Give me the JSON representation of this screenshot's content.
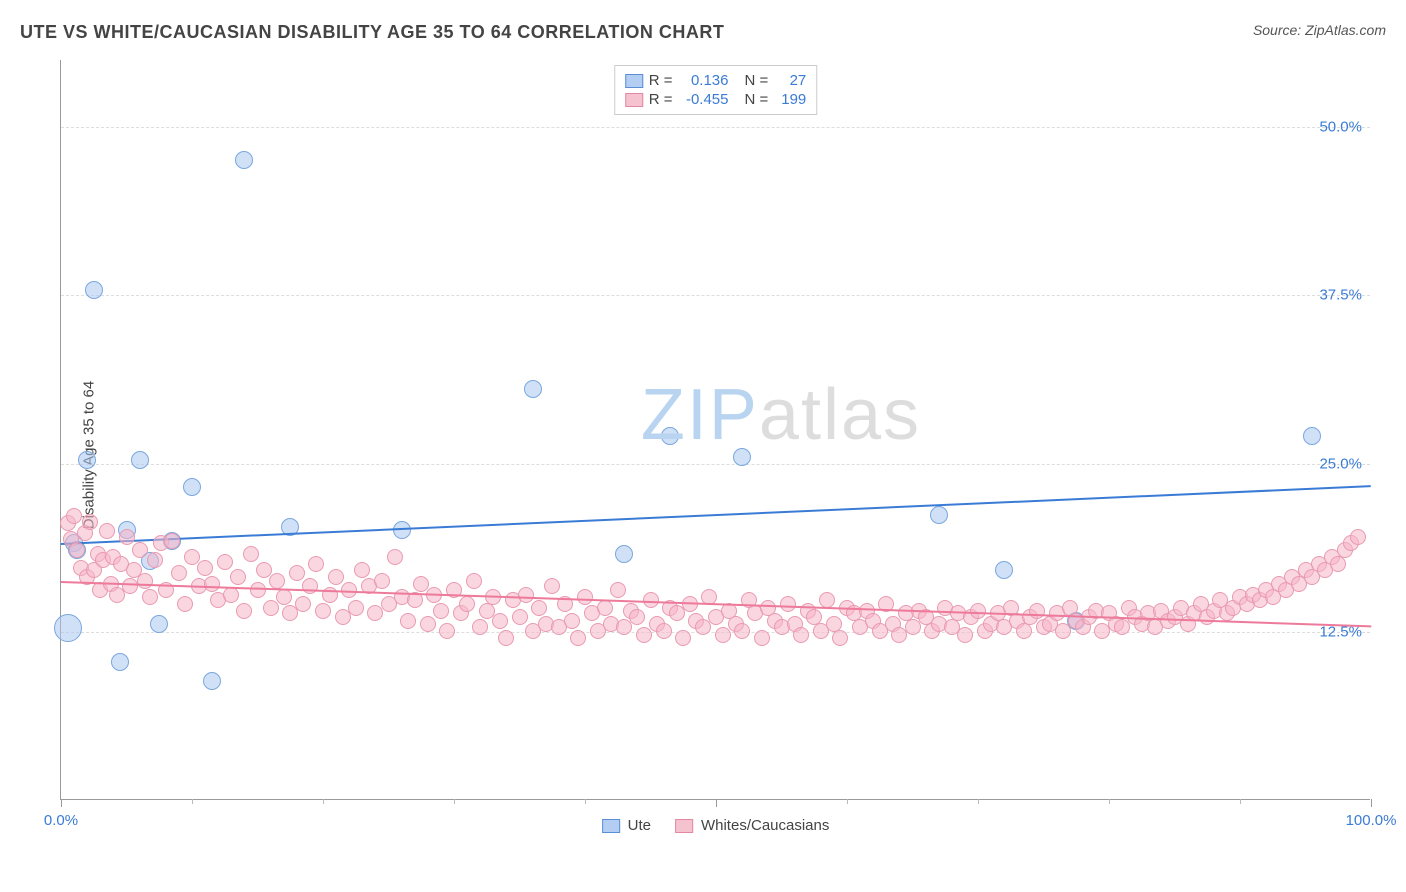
{
  "header": {
    "title": "UTE VS WHITE/CAUCASIAN DISABILITY AGE 35 TO 64 CORRELATION CHART",
    "source": "Source: ZipAtlas.com"
  },
  "chart": {
    "type": "scatter",
    "ylabel": "Disability Age 35 to 64",
    "xlim": [
      0,
      100
    ],
    "ylim": [
      0,
      55
    ],
    "xaxis_labels": [
      {
        "pos": 0,
        "text": "0.0%"
      },
      {
        "pos": 100,
        "text": "100.0%"
      }
    ],
    "xaxis_label_color": "#3a7bd5",
    "xticks_major": [
      0,
      50,
      100
    ],
    "xticks_minor": [
      10,
      20,
      30,
      40,
      60,
      70,
      80,
      90
    ],
    "yticks": [
      {
        "v": 12.5,
        "label": "12.5%"
      },
      {
        "v": 25.0,
        "label": "25.0%"
      },
      {
        "v": 37.5,
        "label": "37.5%"
      },
      {
        "v": 50.0,
        "label": "50.0%"
      }
    ],
    "ytick_color": "#3a7bd5",
    "grid_color": "#dddddd",
    "background": "#ffffff",
    "watermark": {
      "zip": "ZIP",
      "atlas": "atlas",
      "color_zip": "#b8d4f0",
      "color_atlas": "#dddddd"
    },
    "legend_top": {
      "rows": [
        {
          "swatch_fill": "#b3cef2",
          "swatch_border": "#5a8fd6",
          "r_label": "R =",
          "r_val": "0.136",
          "n_label": "N =",
          "n_val": "27"
        },
        {
          "swatch_fill": "#f5c3cf",
          "swatch_border": "#e589a2",
          "r_label": "R =",
          "r_val": "-0.455",
          "n_label": "N =",
          "n_val": "199"
        }
      ],
      "val_color": "#3a7bd5"
    },
    "legend_bottom": [
      {
        "swatch_fill": "#b3cef2",
        "swatch_border": "#5a8fd6",
        "label": "Ute"
      },
      {
        "swatch_fill": "#f5c3cf",
        "swatch_border": "#e589a2",
        "label": "Whites/Caucasians"
      }
    ],
    "series": [
      {
        "name": "ute",
        "fill": "rgba(170,200,240,0.55)",
        "stroke": "#7aa7de",
        "radius": 9,
        "trend": {
          "x1": 0,
          "y1": 19.1,
          "x2": 100,
          "y2": 23.4,
          "color": "#3a7bd5",
          "width": 2
        },
        "points": [
          [
            0.5,
            12.7,
            14
          ],
          [
            1.0,
            19.0,
            9
          ],
          [
            1.2,
            18.5,
            9
          ],
          [
            2.0,
            25.2,
            9
          ],
          [
            2.5,
            37.8,
            9
          ],
          [
            4.5,
            10.2,
            9
          ],
          [
            5.0,
            20.0,
            9
          ],
          [
            6.0,
            25.2,
            9
          ],
          [
            6.8,
            17.7,
            9
          ],
          [
            7.5,
            13.0,
            9
          ],
          [
            8.5,
            19.2,
            9
          ],
          [
            10.0,
            23.2,
            9
          ],
          [
            11.5,
            8.8,
            9
          ],
          [
            14.0,
            47.5,
            9
          ],
          [
            17.5,
            20.2,
            9
          ],
          [
            26.0,
            20.0,
            9
          ],
          [
            36.0,
            30.5,
            9
          ],
          [
            43.0,
            18.2,
            9
          ],
          [
            46.5,
            27.0,
            9
          ],
          [
            52.0,
            25.4,
            9
          ],
          [
            67.0,
            21.1,
            9
          ],
          [
            77.5,
            13.2,
            9
          ],
          [
            72.0,
            17.0,
            9
          ],
          [
            95.5,
            27.0,
            9
          ]
        ]
      },
      {
        "name": "white",
        "fill": "rgba(245,180,200,0.55)",
        "stroke": "#e99ab0",
        "radius": 8,
        "trend": {
          "x1": 0,
          "y1": 16.3,
          "x2": 100,
          "y2": 13.0,
          "color": "#ed7a9a",
          "width": 2
        },
        "points": [
          [
            0.5,
            20.5,
            8
          ],
          [
            0.8,
            19.3,
            8
          ],
          [
            1.0,
            21.0,
            8
          ],
          [
            1.2,
            18.5,
            8
          ],
          [
            1.5,
            17.2,
            8
          ],
          [
            1.8,
            19.8,
            8
          ],
          [
            2.0,
            16.5,
            8
          ],
          [
            2.2,
            20.6,
            8
          ],
          [
            2.5,
            17.0,
            8
          ],
          [
            2.8,
            18.2,
            8
          ],
          [
            3.0,
            15.5,
            8
          ],
          [
            3.2,
            17.8,
            8
          ],
          [
            3.5,
            19.9,
            8
          ],
          [
            3.8,
            16.0,
            8
          ],
          [
            4.0,
            18.0,
            8
          ],
          [
            4.3,
            15.2,
            8
          ],
          [
            4.6,
            17.5,
            8
          ],
          [
            5.0,
            19.5,
            8
          ],
          [
            5.3,
            15.8,
            8
          ],
          [
            5.6,
            17.0,
            8
          ],
          [
            6.0,
            18.5,
            8
          ],
          [
            6.4,
            16.2,
            8
          ],
          [
            6.8,
            15.0,
            8
          ],
          [
            7.2,
            17.8,
            8
          ],
          [
            7.6,
            19.0,
            8
          ],
          [
            8.0,
            15.5,
            8
          ],
          [
            8.5,
            19.2,
            8
          ],
          [
            9.0,
            16.8,
            8
          ],
          [
            9.5,
            14.5,
            8
          ],
          [
            10.0,
            18.0,
            8
          ],
          [
            10.5,
            15.8,
            8
          ],
          [
            11.0,
            17.2,
            8
          ],
          [
            11.5,
            16.0,
            8
          ],
          [
            12.0,
            14.8,
            8
          ],
          [
            12.5,
            17.6,
            8
          ],
          [
            13.0,
            15.2,
            8
          ],
          [
            13.5,
            16.5,
            8
          ],
          [
            14.0,
            14.0,
            8
          ],
          [
            14.5,
            18.2,
            8
          ],
          [
            15.0,
            15.5,
            8
          ],
          [
            15.5,
            17.0,
            8
          ],
          [
            16.0,
            14.2,
            8
          ],
          [
            16.5,
            16.2,
            8
          ],
          [
            17.0,
            15.0,
            8
          ],
          [
            17.5,
            13.8,
            8
          ],
          [
            18.0,
            16.8,
            8
          ],
          [
            18.5,
            14.5,
            8
          ],
          [
            19.0,
            15.8,
            8
          ],
          [
            19.5,
            17.5,
            8
          ],
          [
            20.0,
            14.0,
            8
          ],
          [
            20.5,
            15.2,
            8
          ],
          [
            21.0,
            16.5,
            8
          ],
          [
            21.5,
            13.5,
            8
          ],
          [
            22.0,
            15.5,
            8
          ],
          [
            22.5,
            14.2,
            8
          ],
          [
            23.0,
            17.0,
            8
          ],
          [
            23.5,
            15.8,
            8
          ],
          [
            24.0,
            13.8,
            8
          ],
          [
            24.5,
            16.2,
            8
          ],
          [
            25.0,
            14.5,
            8
          ],
          [
            25.5,
            18.0,
            8
          ],
          [
            26.0,
            15.0,
            8
          ],
          [
            26.5,
            13.2,
            8
          ],
          [
            27.0,
            14.8,
            8
          ],
          [
            27.5,
            16.0,
            8
          ],
          [
            28.0,
            13.0,
            8
          ],
          [
            28.5,
            15.2,
            8
          ],
          [
            29.0,
            14.0,
            8
          ],
          [
            29.5,
            12.5,
            8
          ],
          [
            30.0,
            15.5,
            8
          ],
          [
            30.5,
            13.8,
            8
          ],
          [
            31.0,
            14.5,
            8
          ],
          [
            31.5,
            16.2,
            8
          ],
          [
            32.0,
            12.8,
            8
          ],
          [
            32.5,
            14.0,
            8
          ],
          [
            33.0,
            15.0,
            8
          ],
          [
            33.5,
            13.2,
            8
          ],
          [
            34.0,
            12.0,
            8
          ],
          [
            34.5,
            14.8,
            8
          ],
          [
            35.0,
            13.5,
            8
          ],
          [
            35.5,
            15.2,
            8
          ],
          [
            36.0,
            12.5,
            8
          ],
          [
            36.5,
            14.2,
            8
          ],
          [
            37.0,
            13.0,
            8
          ],
          [
            37.5,
            15.8,
            8
          ],
          [
            38.0,
            12.8,
            8
          ],
          [
            38.5,
            14.5,
            8
          ],
          [
            39.0,
            13.2,
            8
          ],
          [
            39.5,
            12.0,
            8
          ],
          [
            40.0,
            15.0,
            8
          ],
          [
            40.5,
            13.8,
            8
          ],
          [
            41.0,
            12.5,
            8
          ],
          [
            41.5,
            14.2,
            8
          ],
          [
            42.0,
            13.0,
            8
          ],
          [
            42.5,
            15.5,
            8
          ],
          [
            43.0,
            12.8,
            8
          ],
          [
            43.5,
            14.0,
            8
          ],
          [
            44.0,
            13.5,
            8
          ],
          [
            44.5,
            12.2,
            8
          ],
          [
            45.0,
            14.8,
            8
          ],
          [
            45.5,
            13.0,
            8
          ],
          [
            46.0,
            12.5,
            8
          ],
          [
            46.5,
            14.2,
            8
          ],
          [
            47.0,
            13.8,
            8
          ],
          [
            47.5,
            12.0,
            8
          ],
          [
            48.0,
            14.5,
            8
          ],
          [
            48.5,
            13.2,
            8
          ],
          [
            49.0,
            12.8,
            8
          ],
          [
            49.5,
            15.0,
            8
          ],
          [
            50.0,
            13.5,
            8
          ],
          [
            50.5,
            12.2,
            8
          ],
          [
            51.0,
            14.0,
            8
          ],
          [
            51.5,
            13.0,
            8
          ],
          [
            52.0,
            12.5,
            8
          ],
          [
            52.5,
            14.8,
            8
          ],
          [
            53.0,
            13.8,
            8
          ],
          [
            53.5,
            12.0,
            8
          ],
          [
            54.0,
            14.2,
            8
          ],
          [
            54.5,
            13.2,
            8
          ],
          [
            55.0,
            12.8,
            8
          ],
          [
            55.5,
            14.5,
            8
          ],
          [
            56.0,
            13.0,
            8
          ],
          [
            56.5,
            12.2,
            8
          ],
          [
            57.0,
            14.0,
            8
          ],
          [
            57.5,
            13.5,
            8
          ],
          [
            58.0,
            12.5,
            8
          ],
          [
            58.5,
            14.8,
            8
          ],
          [
            59.0,
            13.0,
            8
          ],
          [
            59.5,
            12.0,
            8
          ],
          [
            60.0,
            14.2,
            8
          ],
          [
            60.5,
            13.8,
            8
          ],
          [
            61.0,
            12.8,
            8
          ],
          [
            61.5,
            14.0,
            8
          ],
          [
            62.0,
            13.2,
            8
          ],
          [
            62.5,
            12.5,
            8
          ],
          [
            63.0,
            14.5,
            8
          ],
          [
            63.5,
            13.0,
            8
          ],
          [
            64.0,
            12.2,
            8
          ],
          [
            64.5,
            13.8,
            8
          ],
          [
            65.0,
            12.8,
            8
          ],
          [
            65.5,
            14.0,
            8
          ],
          [
            66.0,
            13.5,
            8
          ],
          [
            66.5,
            12.5,
            8
          ],
          [
            67.0,
            13.0,
            8
          ],
          [
            67.5,
            14.2,
            8
          ],
          [
            68.0,
            12.8,
            8
          ],
          [
            68.5,
            13.8,
            8
          ],
          [
            69.0,
            12.2,
            8
          ],
          [
            69.5,
            13.5,
            8
          ],
          [
            70.0,
            14.0,
            8
          ],
          [
            70.5,
            12.5,
            8
          ],
          [
            71.0,
            13.0,
            8
          ],
          [
            71.5,
            13.8,
            8
          ],
          [
            72.0,
            12.8,
            8
          ],
          [
            72.5,
            14.2,
            8
          ],
          [
            73.0,
            13.2,
            8
          ],
          [
            73.5,
            12.5,
            8
          ],
          [
            74.0,
            13.5,
            8
          ],
          [
            74.5,
            14.0,
            8
          ],
          [
            75.0,
            12.8,
            8
          ],
          [
            75.5,
            13.0,
            8
          ],
          [
            76.0,
            13.8,
            8
          ],
          [
            76.5,
            12.5,
            8
          ],
          [
            77.0,
            14.2,
            8
          ],
          [
            77.5,
            13.2,
            8
          ],
          [
            78.0,
            12.8,
            8
          ],
          [
            78.5,
            13.5,
            8
          ],
          [
            79.0,
            14.0,
            8
          ],
          [
            79.5,
            12.5,
            8
          ],
          [
            80.0,
            13.8,
            8
          ],
          [
            80.5,
            13.0,
            8
          ],
          [
            81.0,
            12.8,
            8
          ],
          [
            81.5,
            14.2,
            8
          ],
          [
            82.0,
            13.5,
            8
          ],
          [
            82.5,
            13.0,
            8
          ],
          [
            83.0,
            13.8,
            8
          ],
          [
            83.5,
            12.8,
            8
          ],
          [
            84.0,
            14.0,
            8
          ],
          [
            84.5,
            13.2,
            8
          ],
          [
            85.0,
            13.5,
            8
          ],
          [
            85.5,
            14.2,
            8
          ],
          [
            86.0,
            13.0,
            8
          ],
          [
            86.5,
            13.8,
            8
          ],
          [
            87.0,
            14.5,
            8
          ],
          [
            87.5,
            13.5,
            8
          ],
          [
            88.0,
            14.0,
            8
          ],
          [
            88.5,
            14.8,
            8
          ],
          [
            89.0,
            13.8,
            8
          ],
          [
            89.5,
            14.2,
            8
          ],
          [
            90.0,
            15.0,
            8
          ],
          [
            90.5,
            14.5,
            8
          ],
          [
            91.0,
            15.2,
            8
          ],
          [
            91.5,
            14.8,
            8
          ],
          [
            92.0,
            15.5,
            8
          ],
          [
            92.5,
            15.0,
            8
          ],
          [
            93.0,
            16.0,
            8
          ],
          [
            93.5,
            15.5,
            8
          ],
          [
            94.0,
            16.5,
            8
          ],
          [
            94.5,
            16.0,
            8
          ],
          [
            95.0,
            17.0,
            8
          ],
          [
            95.5,
            16.5,
            8
          ],
          [
            96.0,
            17.5,
            8
          ],
          [
            96.5,
            17.0,
            8
          ],
          [
            97.0,
            18.0,
            8
          ],
          [
            97.5,
            17.5,
            8
          ],
          [
            98.0,
            18.5,
            8
          ],
          [
            98.5,
            19.0,
            8
          ],
          [
            99.0,
            19.5,
            8
          ]
        ]
      }
    ]
  }
}
